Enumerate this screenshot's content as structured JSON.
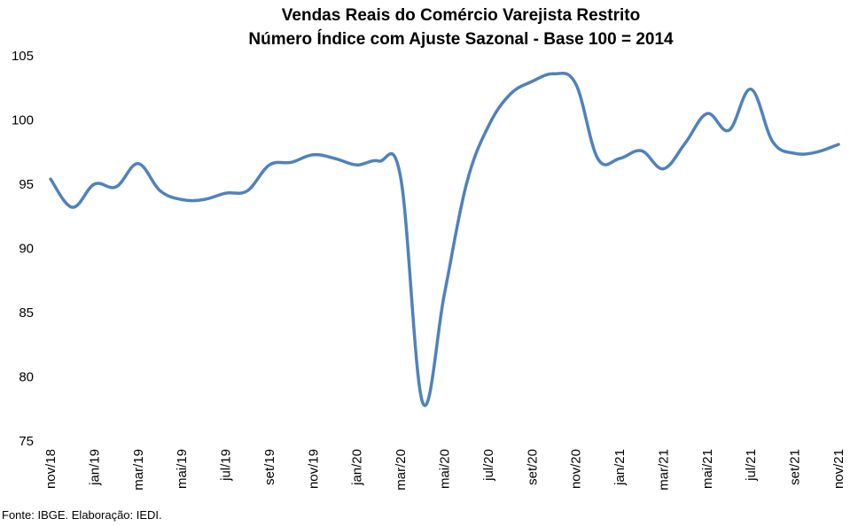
{
  "chart_data": {
    "type": "line",
    "title": "Vendas Reais do Comércio Varejista Restrito",
    "subtitle": "Número Índice com Ajuste Sazonal - Base 100 = 2014",
    "xlabel": "",
    "ylabel": "",
    "ylim": [
      75,
      105
    ],
    "yticks": [
      75,
      80,
      85,
      90,
      95,
      100,
      105
    ],
    "grid": false,
    "x": [
      "nov/18",
      "dez/18",
      "jan/19",
      "fev/19",
      "mar/19",
      "abr/19",
      "mai/19",
      "jun/19",
      "jul/19",
      "ago/19",
      "set/19",
      "out/19",
      "nov/19",
      "dez/19",
      "jan/20",
      "fev/20",
      "mar/20",
      "abr/20",
      "mai/20",
      "jun/20",
      "jul/20",
      "ago/20",
      "set/20",
      "out/20",
      "nov/20",
      "dez/20",
      "jan/21",
      "fev/21",
      "mar/21",
      "abr/21",
      "mai/21",
      "jun/21",
      "jul/21",
      "ago/21",
      "set/21",
      "out/21",
      "nov/21"
    ],
    "xtick_labels": [
      "nov/18",
      "jan/19",
      "mar/19",
      "mai/19",
      "jul/19",
      "set/19",
      "nov/19",
      "jan/20",
      "mar/20",
      "mai/20",
      "jul/20",
      "set/20",
      "nov/20",
      "jan/21",
      "mar/21",
      "mai/21",
      "jul/21",
      "set/21",
      "nov/21"
    ],
    "series": [
      {
        "name": "",
        "color": "#4f81bd",
        "values": [
          95.4,
          93.2,
          95.0,
          94.8,
          96.6,
          94.5,
          93.8,
          93.8,
          94.3,
          94.5,
          96.5,
          96.7,
          97.3,
          97.0,
          96.5,
          96.8,
          95.5,
          78.0,
          86.5,
          95.0,
          99.5,
          102.0,
          103.0,
          103.6,
          102.8,
          97.0,
          97.0,
          97.6,
          96.2,
          98.2,
          100.5,
          99.2,
          102.4,
          98.3,
          97.4,
          97.5,
          98.1
        ]
      }
    ]
  },
  "source": "Fonte: IBGE. Elaboração: IEDI."
}
